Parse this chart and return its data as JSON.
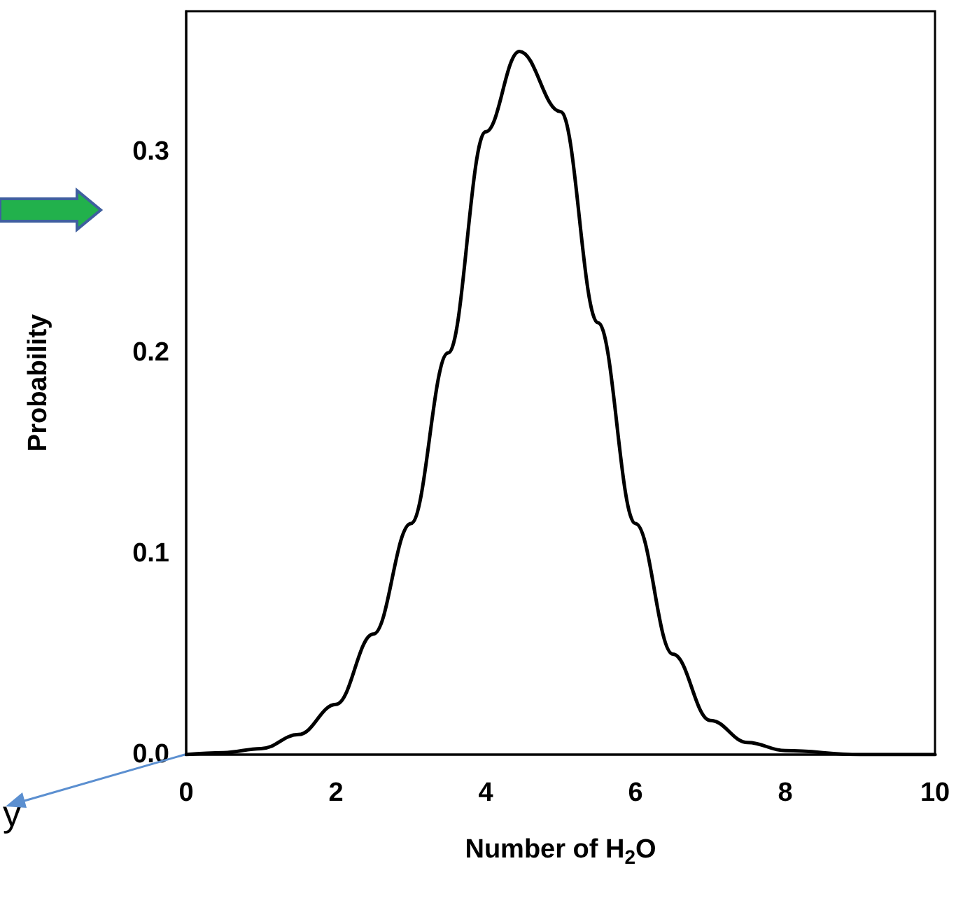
{
  "chart_data": {
    "type": "line",
    "xlabel": "Number of H$_{2}$O",
    "ylabel": "Probability",
    "x": [
      0,
      0.5,
      1,
      1.5,
      2,
      2.5,
      3,
      3.5,
      4,
      4.45,
      5,
      5.5,
      6,
      6.5,
      7,
      7.5,
      8,
      9,
      10
    ],
    "series": [
      {
        "color": "#000000",
        "values": [
          0,
          0.001,
          0.003,
          0.01,
          0.025,
          0.06,
          0.115,
          0.2,
          0.31,
          0.35,
          0.32,
          0.215,
          0.115,
          0.05,
          0.017,
          0.006,
          0.002,
          0,
          0
        ]
      }
    ],
    "xlim": [
      0,
      10
    ],
    "xticks": [
      0,
      2,
      4,
      6,
      8,
      10
    ],
    "ylim": [
      0,
      0.37
    ],
    "yticks": [
      {
        "value": 0,
        "label": "0.0"
      },
      {
        "value": 0.1,
        "label": "0.1"
      },
      {
        "value": 0.2,
        "label": "0.2"
      },
      {
        "value": 0.3,
        "label": "0.3"
      }
    ],
    "grid": false,
    "marker": "none",
    "line_style": "solid",
    "annotations": [
      "y"
    ]
  }
}
